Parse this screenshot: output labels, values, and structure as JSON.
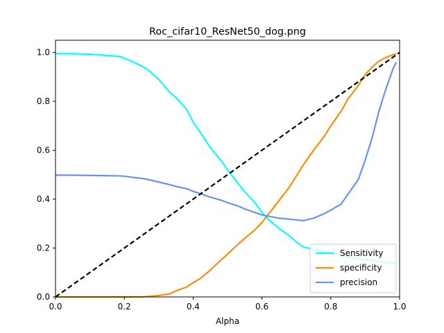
{
  "chart_data": {
    "type": "line",
    "title": "Roc_cifar10_ResNet50_dog.png",
    "xlabel": "Alpha",
    "ylabel": "",
    "xlim": [
      0,
      1
    ],
    "ylim": [
      0,
      1.05
    ],
    "xticks": [
      "0.0",
      "0.2",
      "0.4",
      "0.6",
      "0.8",
      "1.0"
    ],
    "yticks": [
      "0.0",
      "0.2",
      "0.4",
      "0.6",
      "0.8",
      "1.0"
    ],
    "grid": false,
    "legend_position": "lower right",
    "x": [
      0.0,
      0.05,
      0.1,
      0.15,
      0.19,
      0.22,
      0.25,
      0.27,
      0.3,
      0.33,
      0.35,
      0.38,
      0.4,
      0.42,
      0.45,
      0.48,
      0.5,
      0.53,
      0.55,
      0.58,
      0.6,
      0.62,
      0.65,
      0.68,
      0.7,
      0.72,
      0.75,
      0.78,
      0.8,
      0.83,
      0.85,
      0.88,
      0.9,
      0.92,
      0.94,
      0.96,
      0.98,
      0.99
    ],
    "series": [
      {
        "name": "Sensitivity",
        "color": "#00FFFF",
        "values": [
          0.995,
          0.995,
          0.993,
          0.988,
          0.983,
          0.965,
          0.945,
          0.928,
          0.89,
          0.84,
          0.815,
          0.77,
          0.715,
          0.675,
          0.61,
          0.56,
          0.52,
          0.465,
          0.43,
          0.385,
          0.345,
          0.315,
          0.28,
          0.25,
          0.225,
          0.205,
          0.195,
          0.185,
          0.18,
          0.17,
          0.165,
          0.158,
          0.152,
          0.148,
          0.145,
          0.142,
          0.14,
          0.138
        ]
      },
      {
        "name": "specificity",
        "color": "#FF8C00",
        "values": [
          0.0,
          0.0,
          0.0,
          0.0,
          0.0,
          0.0,
          0.0,
          0.002,
          0.006,
          0.012,
          0.025,
          0.04,
          0.058,
          0.075,
          0.11,
          0.15,
          0.175,
          0.215,
          0.24,
          0.275,
          0.305,
          0.34,
          0.395,
          0.45,
          0.495,
          0.54,
          0.6,
          0.655,
          0.7,
          0.76,
          0.81,
          0.865,
          0.91,
          0.94,
          0.965,
          0.98,
          0.99,
          0.995
        ]
      },
      {
        "name": "precision",
        "color": "#6495ED",
        "values": [
          0.498,
          0.498,
          0.497,
          0.496,
          0.495,
          0.49,
          0.485,
          0.48,
          0.47,
          0.46,
          0.452,
          0.443,
          0.432,
          0.423,
          0.408,
          0.396,
          0.386,
          0.372,
          0.36,
          0.345,
          0.335,
          0.33,
          0.322,
          0.318,
          0.315,
          0.312,
          0.322,
          0.34,
          0.355,
          0.38,
          0.42,
          0.48,
          0.56,
          0.65,
          0.76,
          0.85,
          0.93,
          0.96
        ]
      },
      {
        "name": "",
        "color": "#000000",
        "dashed": true,
        "values": [
          0.0,
          0.05,
          0.1,
          0.15,
          0.19,
          0.22,
          0.25,
          0.27,
          0.3,
          0.33,
          0.35,
          0.38,
          0.4,
          0.42,
          0.45,
          0.48,
          0.5,
          0.53,
          0.55,
          0.58,
          0.6,
          0.62,
          0.65,
          0.68,
          0.7,
          0.72,
          0.75,
          0.78,
          0.8,
          0.83,
          0.85,
          0.88,
          0.9,
          0.92,
          0.94,
          0.96,
          0.98,
          0.99
        ]
      }
    ],
    "diagonal": {
      "x": [
        0,
        1
      ],
      "y": [
        0,
        1
      ]
    }
  }
}
